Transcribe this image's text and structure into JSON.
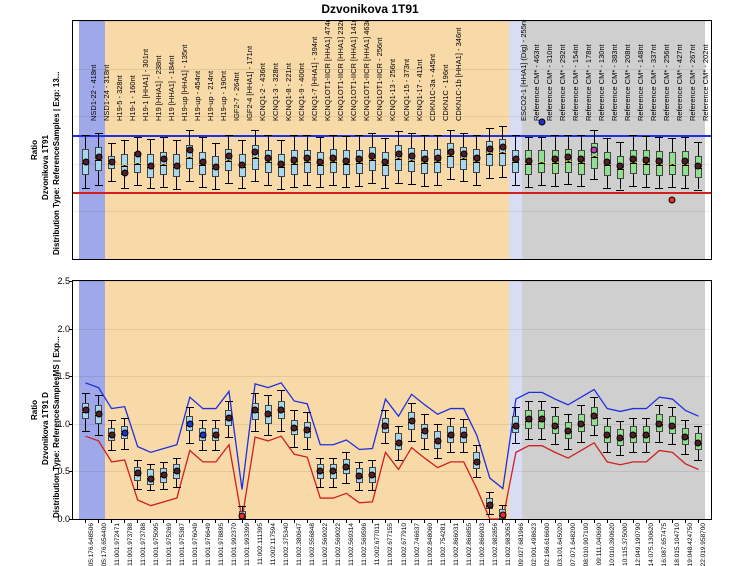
{
  "title": "Dzvonikova 1T91",
  "yAxis": {
    "ratio": "Ratio",
    "ticks": [
      0,
      0.5,
      1.0,
      1.5,
      2.0,
      2.5
    ],
    "min": 0,
    "max": 2.5
  },
  "panel1": {
    "name": "Dzvonikova 1T91",
    "dist": "Distribution  Type: ReferenceSamples | Exp: 13..."
  },
  "panel2": {
    "name": "Dzvonikova 1T91 D",
    "dist": "Distribution  Type: ReferenceSamplesMS | Exp..."
  },
  "regions": [
    {
      "start": 0,
      "end": 2,
      "color": "#9fa8e8"
    },
    {
      "start": 2,
      "end": 33,
      "color": "#f8d9a8"
    },
    {
      "start": 33,
      "end": 34,
      "color": "#d8dcf5"
    },
    {
      "start": 34,
      "end": 48,
      "color": "#cfcfcf"
    }
  ],
  "threshold": {
    "upper": 1.3,
    "lower": 0.7,
    "upperColor": "#2030e0",
    "lowerColor": "#d02020"
  },
  "boxStyle": {
    "sampleFill": "#a8d8f0",
    "refFill": "#90e090",
    "border": "#555555",
    "boxW": 7,
    "capW": 8
  },
  "pointColors": {
    "default": "#502028",
    "blue": "#2030d0",
    "magenta": "#c040c0",
    "red": "#e03030"
  },
  "probes": [
    {
      "label": "NSD1-22 - 418nt",
      "x": "05:176.648506",
      "v1": 1.02,
      "b1": [
        0.88,
        1.16
      ],
      "w1": [
        0.75,
        1.3
      ],
      "v2": 1.15,
      "b2": [
        1.05,
        1.22
      ],
      "w2": [
        0.92,
        1.32
      ]
    },
    {
      "label": "NSD1-24 - 318nt",
      "x": "05:176.654400",
      "v1": 1.07,
      "b1": [
        0.92,
        1.18
      ],
      "w1": [
        0.78,
        1.32
      ],
      "v2": 1.1,
      "b2": [
        1.0,
        1.2
      ],
      "w2": [
        0.88,
        1.3
      ]
    },
    {
      "label": "H19-5 - 328nt",
      "x": "11:001.972471",
      "v1": 1.02,
      "b1": [
        0.95,
        1.08
      ],
      "w1": [
        0.82,
        1.22
      ],
      "v2": 0.88,
      "b2": [
        0.82,
        0.96
      ],
      "w2": [
        0.72,
        1.04
      ]
    },
    {
      "label": "H19-1 - 160nt",
      "x": "11:001.973788",
      "v1": 0.9,
      "b1": [
        0.88,
        1.1
      ],
      "w1": [
        0.75,
        1.25
      ],
      "v2": 0.9,
      "b2": [
        0.84,
        0.98
      ],
      "w2": [
        0.74,
        1.06
      ],
      "c2": "blue"
    },
    {
      "label": "H19-1 [HHA1] - 301nt",
      "x": "11:001.973788",
      "v1": 1.1,
      "b1": [
        0.9,
        1.12
      ],
      "w1": [
        0.78,
        1.28
      ],
      "v2": 0.48,
      "b2": [
        0.4,
        0.55
      ],
      "w2": [
        0.32,
        0.62
      ]
    },
    {
      "label": "H19 [HHA1] - 238nt",
      "x": "11:001.975095",
      "v1": 0.98,
      "b1": [
        0.85,
        1.1
      ],
      "w1": [
        0.75,
        1.26
      ],
      "v2": 0.42,
      "b2": [
        0.36,
        0.52
      ],
      "w2": [
        0.3,
        0.58
      ]
    },
    {
      "label": "H19 [HHA1] - 184nt",
      "x": "11:001.975269",
      "v1": 1.05,
      "b1": [
        0.88,
        1.12
      ],
      "w1": [
        0.76,
        1.28
      ],
      "v2": 0.46,
      "b2": [
        0.38,
        0.54
      ],
      "w2": [
        0.32,
        0.6
      ]
    },
    {
      "label": "H19-up [HHA1] - 135nt",
      "x": "11:001.975387",
      "v1": 0.98,
      "b1": [
        0.86,
        1.1
      ],
      "w1": [
        0.74,
        1.25
      ],
      "v2": 0.5,
      "b2": [
        0.42,
        0.58
      ],
      "w2": [
        0.34,
        0.64
      ]
    },
    {
      "label": "H19-up - 454nt",
      "x": "11:001.976049",
      "v1": 1.15,
      "b1": [
        0.95,
        1.2
      ],
      "w1": [
        0.82,
        1.36
      ],
      "v2": 1.0,
      "b2": [
        0.92,
        1.08
      ],
      "w2": [
        0.8,
        1.18
      ],
      "c2": "blue"
    },
    {
      "label": "H19-up - 214nt",
      "x": "11:001.976649",
      "v1": 1.02,
      "b1": [
        0.88,
        1.12
      ],
      "w1": [
        0.76,
        1.28
      ],
      "v2": 0.88,
      "b2": [
        0.82,
        0.96
      ],
      "w2": [
        0.72,
        1.04
      ],
      "c2": "blue"
    },
    {
      "label": "H19-up - 190nt",
      "x": "11:001.978895",
      "v1": 0.97,
      "b1": [
        0.86,
        1.08
      ],
      "w1": [
        0.74,
        1.22
      ],
      "v2": 0.88,
      "b2": [
        0.82,
        0.96
      ],
      "w2": [
        0.72,
        1.04
      ]
    },
    {
      "label": "IGF2-7 - 264nt",
      "x": "11:001.992370",
      "v1": 1.08,
      "b1": [
        0.92,
        1.16
      ],
      "w1": [
        0.8,
        1.3
      ],
      "v2": 1.06,
      "b2": [
        0.98,
        1.14
      ],
      "w2": [
        0.86,
        1.24
      ]
    },
    {
      "label": "IGF2-4 [HHA1] - 171nt",
      "x": "11:001.993399",
      "v1": 0.99,
      "b1": [
        0.86,
        1.1
      ],
      "w1": [
        0.75,
        1.25
      ],
      "v2": 0.03,
      "b2": [
        0.0,
        0.08
      ],
      "w2": [
        0.0,
        0.14
      ],
      "c2": "red"
    },
    {
      "label": "KCNQ1-2 - 436nt",
      "x": "11:002.111395",
      "v1": 1.12,
      "b1": [
        0.94,
        1.2
      ],
      "w1": [
        0.82,
        1.35
      ],
      "v2": 1.14,
      "b2": [
        1.04,
        1.22
      ],
      "w2": [
        0.92,
        1.32
      ]
    },
    {
      "label": "KCNQ1-3 - 328nt",
      "x": "11:002.117594",
      "v1": 1.06,
      "b1": [
        0.9,
        1.15
      ],
      "w1": [
        0.78,
        1.3
      ],
      "v2": 1.1,
      "b2": [
        1.0,
        1.2
      ],
      "w2": [
        0.88,
        1.3
      ]
    },
    {
      "label": "KCNQ1-8 - 221nt",
      "x": "11:002.375340",
      "v1": 1.0,
      "b1": [
        0.86,
        1.1
      ],
      "w1": [
        0.74,
        1.25
      ],
      "v2": 1.15,
      "b2": [
        1.05,
        1.24
      ],
      "w2": [
        0.92,
        1.35
      ]
    },
    {
      "label": "KCNQ1-9 - 400nt",
      "x": "11:002.380647",
      "v1": 1.04,
      "b1": [
        0.88,
        1.14
      ],
      "w1": [
        0.76,
        1.3
      ],
      "v2": 0.96,
      "b2": [
        0.88,
        1.04
      ],
      "w2": [
        0.76,
        1.14
      ]
    },
    {
      "label": "KCNQ1-7 [HHA1] - 394nt",
      "x": "11:002.556848",
      "v1": 1.06,
      "b1": [
        0.9,
        1.15
      ],
      "w1": [
        0.78,
        1.3
      ],
      "v2": 0.93,
      "b2": [
        0.85,
        1.02
      ],
      "w2": [
        0.74,
        1.12
      ]
    },
    {
      "label": "KCNQ1OT1-IICR [HHA1] 474nt",
      "x": "11:002.569022",
      "v1": 1.02,
      "b1": [
        0.88,
        1.12
      ],
      "w1": [
        0.76,
        1.28
      ],
      "v2": 0.5,
      "b2": [
        0.42,
        0.58
      ],
      "w2": [
        0.34,
        0.64
      ]
    },
    {
      "label": "KCNQ1OT1-IICR [HHA1] 232nt",
      "x": "11:002.569022",
      "v1": 1.06,
      "b1": [
        0.9,
        1.16
      ],
      "w1": [
        0.78,
        1.3
      ],
      "v2": 0.5,
      "b2": [
        0.42,
        0.58
      ],
      "w2": [
        0.34,
        0.64
      ]
    },
    {
      "label": "KCNQ1OT1-IICR [HHA1] 141nt",
      "x": "11:002.569314",
      "v1": 1.03,
      "b1": [
        0.88,
        1.14
      ],
      "w1": [
        0.76,
        1.29
      ],
      "v2": 0.55,
      "b2": [
        0.47,
        0.63
      ],
      "w2": [
        0.38,
        0.7
      ]
    },
    {
      "label": "KCNQ1OT1-IICR [HHA1] 463nt",
      "x": "11:002.569596",
      "v1": 1.05,
      "b1": [
        0.89,
        1.15
      ],
      "w1": [
        0.77,
        1.3
      ],
      "v2": 0.45,
      "b2": [
        0.38,
        0.54
      ],
      "w2": [
        0.3,
        0.6
      ]
    },
    {
      "label": "KCNQ1OT1-IICR - 256nt",
      "x": "11:002.677011",
      "v1": 1.08,
      "b1": [
        0.92,
        1.18
      ],
      "w1": [
        0.8,
        1.32
      ],
      "v2": 0.46,
      "b2": [
        0.38,
        0.55
      ],
      "w2": [
        0.3,
        0.62
      ]
    },
    {
      "label": "KCNQ1-13 - 256nt",
      "x": "11:002.677155",
      "v1": 1.02,
      "b1": [
        0.87,
        1.12
      ],
      "w1": [
        0.75,
        1.27
      ],
      "v2": 0.98,
      "b2": [
        0.9,
        1.06
      ],
      "w2": [
        0.8,
        1.15
      ]
    },
    {
      "label": "KCNQ1-15 - 373nt",
      "x": "11:002.677910",
      "v1": 1.1,
      "b1": [
        0.92,
        1.2
      ],
      "w1": [
        0.8,
        1.34
      ],
      "v2": 0.8,
      "b2": [
        0.72,
        0.9
      ],
      "w2": [
        0.62,
        0.98
      ]
    },
    {
      "label": "KCNQ1-17 - 411nt",
      "x": "11:002.746637",
      "v1": 1.08,
      "b1": [
        0.91,
        1.17
      ],
      "w1": [
        0.79,
        1.32
      ],
      "v2": 1.03,
      "b2": [
        0.93,
        1.12
      ],
      "w2": [
        0.82,
        1.22
      ]
    },
    {
      "label": "CDKN1C-3a - 445nt",
      "x": "11:002.848060",
      "v1": 1.05,
      "b1": [
        0.89,
        1.15
      ],
      "w1": [
        0.77,
        1.3
      ],
      "v2": 0.92,
      "b2": [
        0.84,
        1.0
      ],
      "w2": [
        0.74,
        1.1
      ]
    },
    {
      "label": "CDKN1C - 196nt",
      "x": "11:002.754281",
      "v1": 1.06,
      "b1": [
        0.9,
        1.16
      ],
      "w1": [
        0.78,
        1.3
      ],
      "v2": 0.82,
      "b2": [
        0.74,
        0.92
      ],
      "w2": [
        0.64,
        1.0
      ]
    },
    {
      "label": "CDKN1C-1b [HHA1] - 346nt",
      "x": "11:002.866031",
      "v1": 1.12,
      "b1": [
        0.96,
        1.22
      ],
      "w1": [
        0.84,
        1.36
      ],
      "v2": 0.88,
      "b2": [
        0.8,
        0.98
      ],
      "w2": [
        0.7,
        1.06
      ]
    },
    {
      "label": "",
      "x": "11:002.866855",
      "v1": 1.1,
      "b1": [
        0.94,
        1.18
      ],
      "w1": [
        0.82,
        1.32
      ],
      "v2": 0.88,
      "b2": [
        0.8,
        0.97
      ],
      "w2": [
        0.7,
        1.05
      ]
    },
    {
      "label": "",
      "x": "11:002.866903",
      "v1": 1.06,
      "b1": [
        0.9,
        1.16
      ],
      "w1": [
        0.78,
        1.3
      ],
      "v2": 0.6,
      "b2": [
        0.52,
        0.7
      ],
      "w2": [
        0.44,
        0.78
      ]
    },
    {
      "label": "",
      "x": "11:002.982856",
      "v1": 1.16,
      "b1": [
        0.98,
        1.24
      ],
      "w1": [
        0.85,
        1.38
      ],
      "v2": 0.15,
      "b2": [
        0.1,
        0.22
      ],
      "w2": [
        0.05,
        0.28
      ]
    },
    {
      "label": "",
      "x": "11:002.983053",
      "v1": 1.18,
      "b1": [
        0.98,
        1.26
      ],
      "w1": [
        0.86,
        1.4
      ],
      "v2": 0.04,
      "b2": [
        0.0,
        0.1
      ],
      "w2": [
        0.0,
        0.15
      ],
      "c2": "red"
    },
    {
      "label": "ESCO2-1 [HHA1] (Dig) - 255nt",
      "x": "09:027.681966",
      "v1": 1.05,
      "b1": [
        0.9,
        1.15
      ],
      "w1": [
        0.78,
        1.3
      ],
      "v2": 0.98,
      "b2": [
        0.9,
        1.08
      ],
      "w2": [
        0.8,
        1.18
      ]
    },
    {
      "label": "Reference CM* - 463nt",
      "x": "02:001.498623",
      "v1": 1.03,
      "b1": [
        0.88,
        1.14
      ],
      "w1": [
        0.76,
        1.28
      ],
      "v2": 1.05,
      "b2": [
        0.95,
        1.14
      ],
      "w2": [
        0.84,
        1.24
      ]
    },
    {
      "label": "Reference CM* - 310nt",
      "x": "02:166.616600",
      "v1": 1.44,
      "b1": [
        0.9,
        1.14
      ],
      "w1": [
        0.78,
        1.28
      ],
      "v2": 1.05,
      "b2": [
        0.95,
        1.14
      ],
      "w2": [
        0.84,
        1.24
      ],
      "c1": "blue"
    },
    {
      "label": "Reference CM* - 292nt",
      "x": "03:101.645020",
      "v1": 1.05,
      "b1": [
        0.89,
        1.15
      ],
      "w1": [
        0.77,
        1.3
      ],
      "v2": 0.98,
      "b2": [
        0.89,
        1.08
      ],
      "w2": [
        0.79,
        1.18
      ]
    },
    {
      "label": "Reference CM* - 154nt",
      "x": "07:071.648200",
      "v1": 1.07,
      "b1": [
        0.9,
        1.16
      ],
      "w1": [
        0.79,
        1.3
      ],
      "v2": 0.92,
      "b2": [
        0.84,
        1.02
      ],
      "w2": [
        0.74,
        1.1
      ]
    },
    {
      "label": "Reference CM* - 178nt",
      "x": "08:010.907100",
      "v1": 1.05,
      "b1": [
        0.88,
        1.15
      ],
      "w1": [
        0.77,
        1.3
      ],
      "v2": 1.0,
      "b2": [
        0.91,
        1.1
      ],
      "w2": [
        0.81,
        1.2
      ]
    },
    {
      "label": "Reference CM* - 130nt",
      "x": "09:111.040690",
      "v1": 1.14,
      "b1": [
        0.95,
        1.22
      ],
      "w1": [
        0.84,
        1.35
      ],
      "v2": 1.08,
      "b2": [
        0.98,
        1.18
      ],
      "w2": [
        0.88,
        1.28
      ],
      "c1": "magenta"
    },
    {
      "label": "Reference CM* - 383nt",
      "x": "10:010.390620",
      "v1": 1.02,
      "b1": [
        0.87,
        1.12
      ],
      "w1": [
        0.75,
        1.27
      ],
      "v2": 0.88,
      "b2": [
        0.8,
        0.98
      ],
      "w2": [
        0.7,
        1.06
      ]
    },
    {
      "label": "Reference CM* - 208nt",
      "x": "10:115.375000",
      "v1": 0.98,
      "b1": [
        0.84,
        1.08
      ],
      "w1": [
        0.73,
        1.23
      ],
      "v2": 0.85,
      "b2": [
        0.77,
        0.95
      ],
      "w2": [
        0.67,
        1.03
      ]
    },
    {
      "label": "Reference CM* - 148nt",
      "x": "12:049.190790",
      "v1": 1.05,
      "b1": [
        0.89,
        1.15
      ],
      "w1": [
        0.77,
        1.3
      ],
      "v2": 0.88,
      "b2": [
        0.8,
        0.98
      ],
      "w2": [
        0.7,
        1.06
      ]
    },
    {
      "label": "Reference CM* - 337nt",
      "x": "14:075.130620",
      "v1": 1.04,
      "b1": [
        0.88,
        1.14
      ],
      "w1": [
        0.76,
        1.29
      ],
      "v2": 0.88,
      "b2": [
        0.8,
        0.98
      ],
      "w2": [
        0.7,
        1.06
      ]
    },
    {
      "label": "Reference CM* - 256nt",
      "x": "16:087.657475",
      "v1": 1.03,
      "b1": [
        0.87,
        1.13
      ],
      "w1": [
        0.75,
        1.28
      ],
      "v2": 1.0,
      "b2": [
        0.91,
        1.1
      ],
      "w2": [
        0.81,
        1.2
      ]
    },
    {
      "label": "Reference CM* - 427nt",
      "x": "18:015.104710",
      "v1": 0.62,
      "b1": [
        0.88,
        1.12
      ],
      "w1": [
        0.76,
        1.27
      ],
      "v2": 0.98,
      "b2": [
        0.89,
        1.08
      ],
      "w2": [
        0.79,
        1.18
      ],
      "c1": "red"
    },
    {
      "label": "Reference CM* - 267nt",
      "x": "19:048.424750",
      "v1": 1.03,
      "b1": [
        0.87,
        1.13
      ],
      "w1": [
        0.75,
        1.28
      ],
      "v2": 0.86,
      "b2": [
        0.78,
        0.96
      ],
      "w2": [
        0.68,
        1.04
      ]
    },
    {
      "label": "Reference CM* - 202nt",
      "x": "22:019.958700",
      "v1": 0.98,
      "b1": [
        0.85,
        1.08
      ],
      "w1": [
        0.73,
        1.23
      ],
      "v2": 0.8,
      "b2": [
        0.72,
        0.9
      ],
      "w2": [
        0.62,
        0.98
      ]
    }
  ]
}
